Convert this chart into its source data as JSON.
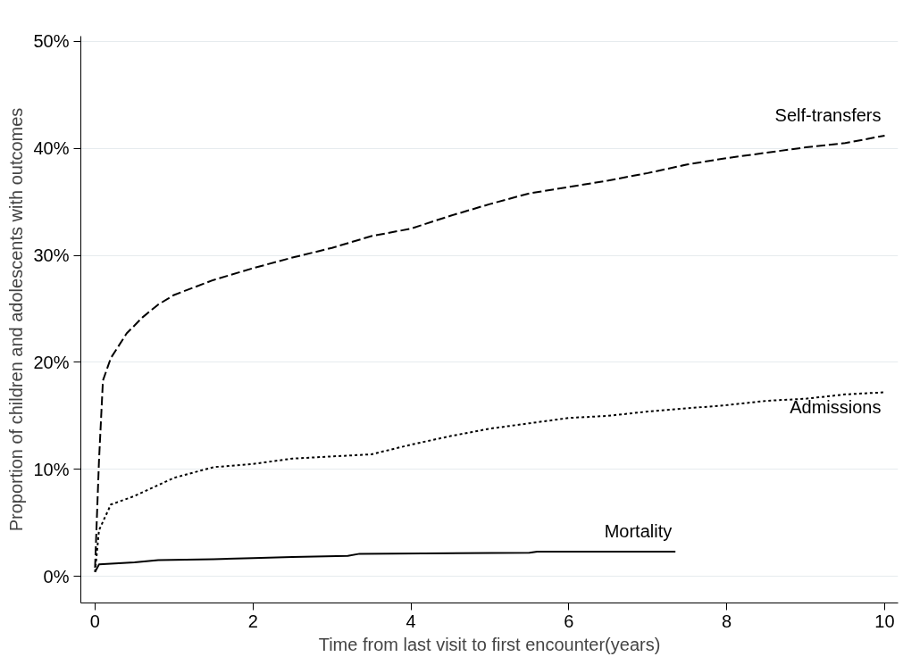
{
  "chart_data": {
    "type": "line",
    "xlabel": "Time from last visit to first encounter(years)",
    "ylabel": "Proportion of children and adolescents with outcomes",
    "xlim": [
      -0.18,
      10.17
    ],
    "ylim": [
      -2.5,
      50.5
    ],
    "xticks": [
      0,
      2,
      4,
      6,
      8,
      10
    ],
    "yticks": [
      {
        "value": 0,
        "label": "0%"
      },
      {
        "value": 10,
        "label": "10%"
      },
      {
        "value": 20,
        "label": "20%"
      },
      {
        "value": 30,
        "label": "30%"
      },
      {
        "value": 40,
        "label": "40%"
      },
      {
        "value": 50,
        "label": "50%"
      }
    ],
    "grid": "y",
    "series": [
      {
        "name": "Self-transfers",
        "color": "#000000",
        "line_style": "dashed",
        "x": [
          0,
          0.05,
          0.1,
          0.2,
          0.4,
          0.6,
          0.8,
          1,
          1.5,
          2,
          2.5,
          3,
          3.5,
          4,
          4.5,
          5,
          5.5,
          6,
          6.5,
          7,
          7.5,
          8,
          8.5,
          9,
          9.5,
          10
        ],
        "values": [
          0.8,
          10.8,
          18.3,
          20.4,
          22.7,
          24.2,
          25.4,
          26.3,
          27.7,
          28.8,
          29.8,
          30.7,
          31.8,
          32.5,
          33.7,
          34.8,
          35.8,
          36.4,
          37,
          37.7,
          38.5,
          39.1,
          39.6,
          40.1,
          40.5,
          41.2
        ]
      },
      {
        "name": "Admissions",
        "color": "#000000",
        "line_style": "dotted",
        "x": [
          0,
          0.05,
          0.2,
          0.5,
          1,
          1.5,
          2,
          2.5,
          3,
          3.5,
          4,
          4.5,
          5,
          5.5,
          6,
          6.5,
          7,
          7.5,
          8,
          8.5,
          9,
          9.5,
          10
        ],
        "values": [
          0.4,
          4.3,
          6.7,
          7.5,
          9.2,
          10.2,
          10.5,
          11,
          11.2,
          11.4,
          12.3,
          13.1,
          13.8,
          14.3,
          14.8,
          15,
          15.4,
          15.7,
          16,
          16.4,
          16.6,
          17,
          17.2
        ]
      },
      {
        "name": "Mortality",
        "color": "#000000",
        "line_style": "solid",
        "x": [
          0,
          0.05,
          0.5,
          0.8,
          1.5,
          2,
          2.5,
          3.2,
          3.35,
          5.5,
          5.6,
          7.35
        ],
        "values": [
          0.4,
          1.1,
          1.3,
          1.5,
          1.6,
          1.7,
          1.8,
          1.9,
          2.1,
          2.2,
          2.3,
          2.3
        ]
      }
    ]
  }
}
